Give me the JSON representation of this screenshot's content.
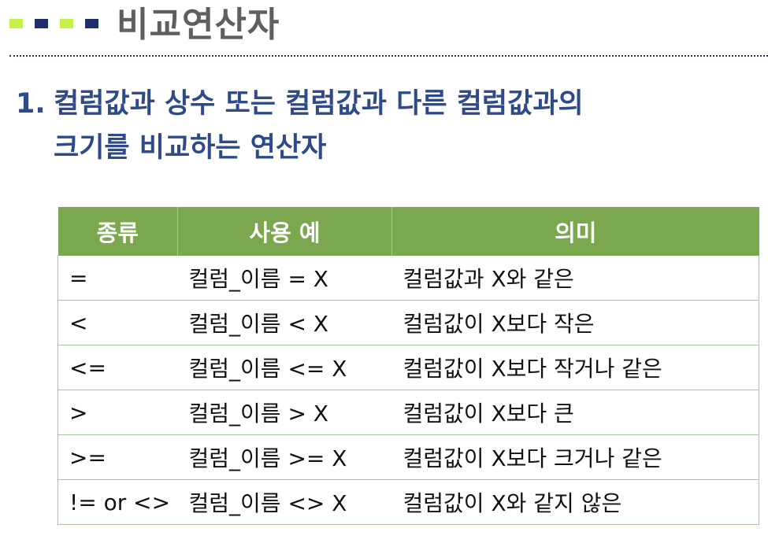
{
  "header": {
    "title": "비교연산자",
    "colors": {
      "lime": "#c6f04a",
      "navy": "#1f2f6b",
      "title": "#5f5f5f"
    }
  },
  "section": {
    "number": "1.",
    "line1": "컬럼값과 상수 또는 컬럼값과 다른 컬럼값과의",
    "line2": "크기를 비교하는 연산자",
    "color": "#2e4a8a"
  },
  "table": {
    "header_color": "#7ba84f",
    "columns": [
      "종류",
      "사용 예",
      "의미"
    ],
    "rows": [
      [
        "=",
        "컬럼_이름 = X",
        "컬럼값과 X와 같은"
      ],
      [
        "<",
        "컬럼_이름 < X",
        "컬럼값이 X보다 작은"
      ],
      [
        "<=",
        "컬럼_이름 <= X",
        "컬럼값이 X보다 작거나 같은"
      ],
      [
        ">",
        "컬럼_이름 > X",
        "컬럼값이 X보다 큰"
      ],
      [
        ">=",
        "컬럼_이름 >= X",
        "컬럼값이 X보다 크거나 같은"
      ],
      [
        "!= or <>",
        "컬럼_이름 <> X",
        "컬럼값이 X와 같지 않은"
      ]
    ]
  }
}
